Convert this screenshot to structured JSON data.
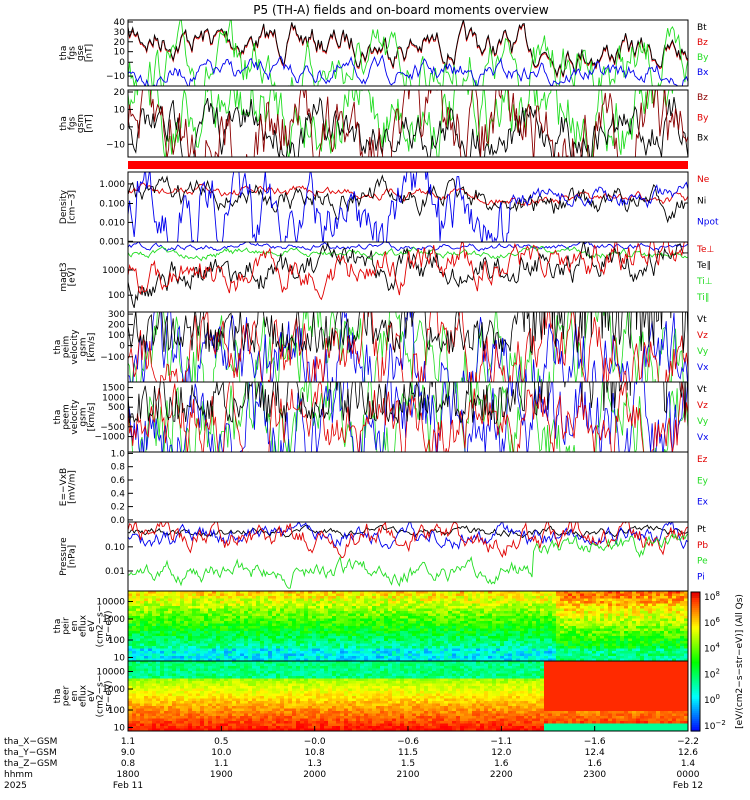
{
  "title": "P5 (TH-A) fields and on-board moments overview",
  "colors": {
    "black": "#000000",
    "red": "#e00000",
    "darkred": "#8b0000",
    "green": "#22dd22",
    "blue": "#0000ee",
    "band": "#ff0000"
  },
  "chart_data": [
    {
      "id": "fgs_gse",
      "type": "line",
      "ylabel": [
        "tha",
        "fgs",
        "gse",
        "[nT]"
      ],
      "ylim": [
        -15,
        42
      ],
      "yticks": [
        "40",
        "30",
        "20",
        "10",
        "0",
        "−10"
      ],
      "legend": [
        {
          "name": "Bt",
          "color": "black"
        },
        {
          "name": "Bz",
          "color": "red"
        },
        {
          "name": "By",
          "color": "green"
        },
        {
          "name": "Bx",
          "color": "blue"
        }
      ]
    },
    {
      "id": "fgs_gsm",
      "type": "line",
      "ylabel": [
        "tha",
        "fgs",
        "gsm",
        "[nT]"
      ],
      "ylim": [
        -18,
        22
      ],
      "yticks": [
        "20",
        "10",
        "0",
        "−10"
      ],
      "legend": [
        {
          "name": "Bz",
          "color": "darkred"
        },
        {
          "name": "By",
          "color": "red"
        },
        {
          "name": "Bx",
          "color": "black"
        }
      ]
    },
    {
      "id": "density",
      "type": "line",
      "log": true,
      "ylabel": [
        "Density",
        "[cm−3]"
      ],
      "yticks": [
        "1.000",
        "0.100",
        "0.010",
        "0.001"
      ],
      "legend": [
        {
          "name": "Ne",
          "color": "red"
        },
        {
          "name": "Ni",
          "color": "black"
        },
        {
          "name": "Npot",
          "color": "blue"
        }
      ]
    },
    {
      "id": "temp",
      "type": "line",
      "log": true,
      "ylabel": [
        "magt3",
        "[eV]"
      ],
      "yticks": [
        "1000",
        "100"
      ],
      "legend": [
        {
          "name": "Te⊥",
          "color": "red"
        },
        {
          "name": "Te∥",
          "color": "black"
        },
        {
          "name": "Ti⊥",
          "color": "green"
        },
        {
          "name": "Ti∥",
          "color": "green"
        }
      ]
    },
    {
      "id": "peim_vel",
      "type": "line",
      "ylabel": [
        "tha",
        "peim",
        "velocity",
        "gsm",
        "[km/s]"
      ],
      "yticks": [
        "300",
        "200",
        "100",
        "0",
        "−100"
      ],
      "legend": [
        {
          "name": "Vt",
          "color": "black"
        },
        {
          "name": "Vz",
          "color": "red"
        },
        {
          "name": "Vy",
          "color": "green"
        },
        {
          "name": "Vx",
          "color": "blue"
        }
      ]
    },
    {
      "id": "peem_vel",
      "type": "line",
      "ylabel": [
        "tha",
        "peem",
        "velocity",
        "gsm",
        "[km/s]"
      ],
      "yticks": [
        "1500",
        "1000",
        "500",
        "0",
        "−500",
        "−1000"
      ],
      "legend": [
        {
          "name": "Vt",
          "color": "black"
        },
        {
          "name": "Vz",
          "color": "red"
        },
        {
          "name": "Vy",
          "color": "green"
        },
        {
          "name": "Vx",
          "color": "blue"
        }
      ]
    },
    {
      "id": "efield",
      "type": "line",
      "ylabel": [
        "E=−VxB",
        "[mV/m]"
      ],
      "yticks": [
        "1.0",
        "0.8",
        "0.6",
        "0.4",
        "0.2",
        "0.0"
      ],
      "legend": [
        {
          "name": "Ez",
          "color": "red"
        },
        {
          "name": "Ey",
          "color": "green"
        },
        {
          "name": "Ex",
          "color": "blue"
        }
      ]
    },
    {
      "id": "pressure",
      "type": "line",
      "log": true,
      "ylabel": [
        "Pressure",
        "[nPa]"
      ],
      "yticks": [
        "0.10",
        "0.01"
      ],
      "legend": [
        {
          "name": "Pt",
          "color": "black"
        },
        {
          "name": "Pb",
          "color": "red"
        },
        {
          "name": "Pe",
          "color": "green"
        },
        {
          "name": "Pi",
          "color": "blue"
        }
      ]
    },
    {
      "id": "peir_en",
      "type": "heatmap",
      "ylabel": [
        "tha",
        "peir",
        "en",
        "eflux",
        "eV",
        "(cm2−s−",
        "sr−eV)"
      ],
      "yticks": [
        "10000",
        "1000",
        "100",
        "10"
      ]
    },
    {
      "id": "peer_en",
      "type": "heatmap",
      "ylabel": [
        "tha",
        "peer",
        "en",
        "eflux",
        "eV",
        "(cm2−s−",
        "sr−eV)"
      ],
      "yticks": [
        "10000",
        "1000",
        "100",
        "10"
      ]
    }
  ],
  "colorbar": {
    "label": "[eV/(cm2−s−str−eV)] (All Qs)",
    "ticks_top": [
      "10",
      "10",
      "10",
      "10",
      "10",
      "10"
    ],
    "sup_top": [
      "8",
      "6",
      "4",
      "2",
      "0",
      "−2"
    ]
  },
  "xaxis": {
    "labels": [
      "tha_X−GSM",
      "tha_Y−GSM",
      "tha_Z−GSM",
      "hhmm",
      "2025"
    ],
    "ticks": [
      {
        "x": "1.1",
        "y": "9.0",
        "z": "0.8",
        "t": "1800",
        "d": "Feb 11"
      },
      {
        "x": "0.5",
        "y": "10.0",
        "z": "1.1",
        "t": "1900",
        "d": ""
      },
      {
        "x": "−0.0",
        "y": "10.8",
        "z": "1.3",
        "t": "2000",
        "d": ""
      },
      {
        "x": "−0.6",
        "y": "11.5",
        "z": "1.5",
        "t": "2100",
        "d": ""
      },
      {
        "x": "−1.1",
        "y": "12.0",
        "z": "1.6",
        "t": "2200",
        "d": ""
      },
      {
        "x": "−1.6",
        "y": "12.4",
        "z": "1.6",
        "t": "2300",
        "d": ""
      },
      {
        "x": "−2.2",
        "y": "12.6",
        "z": "1.4",
        "t": "0000",
        "d": "Feb 12"
      }
    ]
  }
}
